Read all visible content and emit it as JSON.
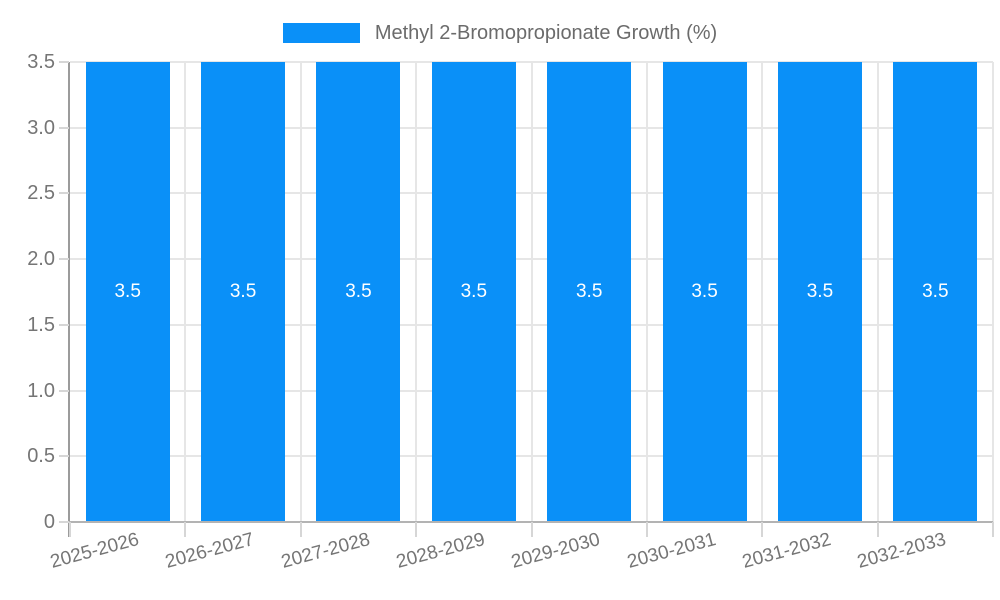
{
  "legend": {
    "label": "Methyl 2-Bromopropionate Growth (%)"
  },
  "chart_data": {
    "type": "bar",
    "title": "",
    "categories": [
      "2025-2026",
      "2026-2027",
      "2027-2028",
      "2028-2029",
      "2029-2030",
      "2030-2031",
      "2031-2032",
      "2032-2033"
    ],
    "series": [
      {
        "name": "Methyl 2-Bromopropionate Growth (%)",
        "values": [
          3.5,
          3.5,
          3.5,
          3.5,
          3.5,
          3.5,
          3.5,
          3.5
        ]
      }
    ],
    "bar_value_labels": [
      "3.5",
      "3.5",
      "3.5",
      "3.5",
      "3.5",
      "3.5",
      "3.5",
      "3.5"
    ],
    "xlabel": "",
    "ylabel": "",
    "ylim": [
      0,
      3.5
    ],
    "yticks": [
      0,
      0.5,
      1.0,
      1.5,
      2.0,
      2.5,
      3.0,
      3.5
    ],
    "ytick_labels": [
      "0",
      "0.5",
      "1.0",
      "1.5",
      "2.0",
      "2.5",
      "3.0",
      "3.5"
    ],
    "grid": true,
    "legend_position": "top-center",
    "colors": {
      "bar": "#0a90f8",
      "bar_label": "#ffffff",
      "gridline": "#e6e6e6",
      "tick": "#d6d6d6",
      "axis_line": "#9b9b9b",
      "baseline": "#b3b3b3",
      "text": "#757575"
    }
  }
}
